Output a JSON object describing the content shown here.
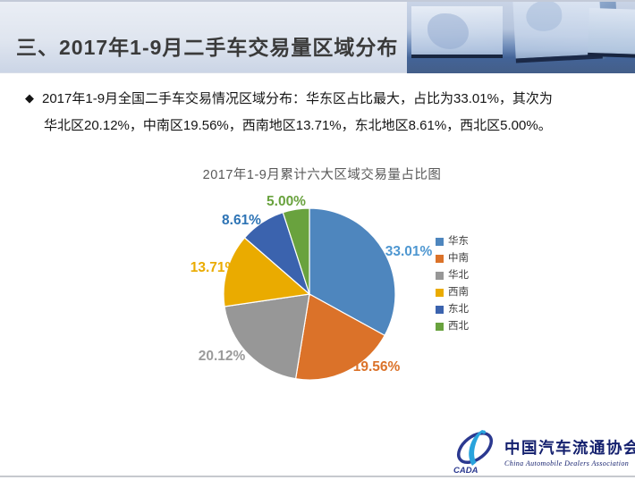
{
  "header": {
    "title": "三、2017年1-9月二手车交易量区域分布"
  },
  "body": {
    "bullet": "◆",
    "lines": [
      "2017年1-9月全国二手车交易情况区域分布：华东区占比最大，占比为33.01%，其次为",
      "华北区20.12%，中南区19.56%，西南地区13.71%，东北地区8.61%，西北区5.00%。"
    ]
  },
  "chart_data": {
    "type": "pie",
    "title": "2017年1-9月累计六大区域交易量占比图",
    "unit": "percent",
    "start_angle_deg": 0,
    "direction": "clockwise",
    "legend_position": "right",
    "series": [
      {
        "name": "华东",
        "value": 33.01,
        "label": "33.01%",
        "color": "#4E86BE",
        "label_color": "#4E97D1"
      },
      {
        "name": "中南",
        "value": 19.56,
        "label": "19.56%",
        "color": "#DB7229",
        "label_color": "#DB7229"
      },
      {
        "name": "华北",
        "value": 20.12,
        "label": "20.12%",
        "color": "#979797",
        "label_color": "#9B9B9B"
      },
      {
        "name": "西南",
        "value": 13.71,
        "label": "13.71%",
        "color": "#EAAB00",
        "label_color": "#EAAB00"
      },
      {
        "name": "东北",
        "value": 8.61,
        "label": "8.61%",
        "color": "#3B63AE",
        "label_color": "#2E74B5"
      },
      {
        "name": "西北",
        "value": 5.0,
        "label": "5.00%",
        "color": "#69A23E",
        "label_color": "#69A23E"
      }
    ]
  },
  "logo": {
    "acronym": "CADA",
    "cn_name": "中国汽车流通协会",
    "en_name": "China Automobile Dealers Association"
  }
}
